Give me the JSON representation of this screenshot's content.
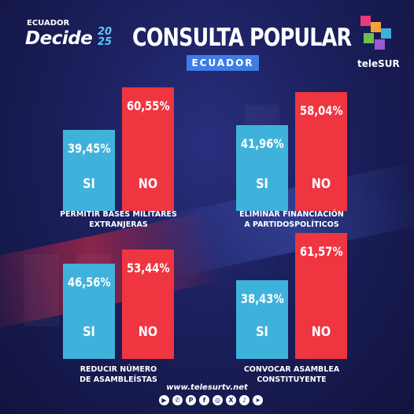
{
  "header": {
    "brand_top": "ECUADOR",
    "brand_main": "Decide",
    "brand_year_top": "20",
    "brand_year_bottom": "25",
    "title": "CONSULTA POPULAR",
    "subtitle": "ECUADOR",
    "network": "teleSUR"
  },
  "footer": {
    "url": "www.telesurtv.net",
    "social_icons": [
      "youtube-icon",
      "whatsapp-icon",
      "pinterest-icon",
      "facebook-icon",
      "instagram-icon",
      "x-icon",
      "tiktok-icon",
      "telegram-icon"
    ]
  },
  "colors": {
    "si": "#3fb2db",
    "no": "#ef3540",
    "accent": "#3e7de6",
    "background": "#1b1f5c"
  },
  "chart_data": [
    {
      "type": "bar",
      "categories": [
        "SI",
        "NO"
      ],
      "values_label": [
        "39,45%",
        "60,55%"
      ],
      "values": [
        39.45,
        60.55
      ],
      "title": "PERMITIR BASES MILITARES EXTRANJERAS",
      "title_lines": [
        "PERMITIR BASES MILITARES",
        "EXTRANJERAS"
      ],
      "ylim": [
        0,
        100
      ]
    },
    {
      "type": "bar",
      "categories": [
        "SI",
        "NO"
      ],
      "values_label": [
        "41,96%",
        "58,04%"
      ],
      "values": [
        41.96,
        58.04
      ],
      "title": "ELIMINAR FINANCIACIÓN A PARTIDOSPOLÍTICOS",
      "title_lines": [
        "ELIMINAR FINANCIACIÓN",
        "A PARTIDOSPOLÍTICOS"
      ],
      "ylim": [
        0,
        100
      ]
    },
    {
      "type": "bar",
      "categories": [
        "SI",
        "NO"
      ],
      "values_label": [
        "46,56%",
        "53,44%"
      ],
      "values": [
        46.56,
        53.44
      ],
      "title": "REDUCIR NÚMERO DE ASAMBLEÍSTAS",
      "title_lines": [
        "REDUCIR NÚMERO",
        "DE ASAMBLEÍSTAS"
      ],
      "ylim": [
        0,
        100
      ]
    },
    {
      "type": "bar",
      "categories": [
        "SI",
        "NO"
      ],
      "values_label": [
        "38,43%",
        "61,57%"
      ],
      "values": [
        38.43,
        61.57
      ],
      "title": "CONVOCAR ASAMBLEA CONSTITUYENTE",
      "title_lines": [
        "CONVOCAR ASAMBLEA",
        "CONSTITUYENTE"
      ],
      "ylim": [
        0,
        100
      ]
    }
  ]
}
